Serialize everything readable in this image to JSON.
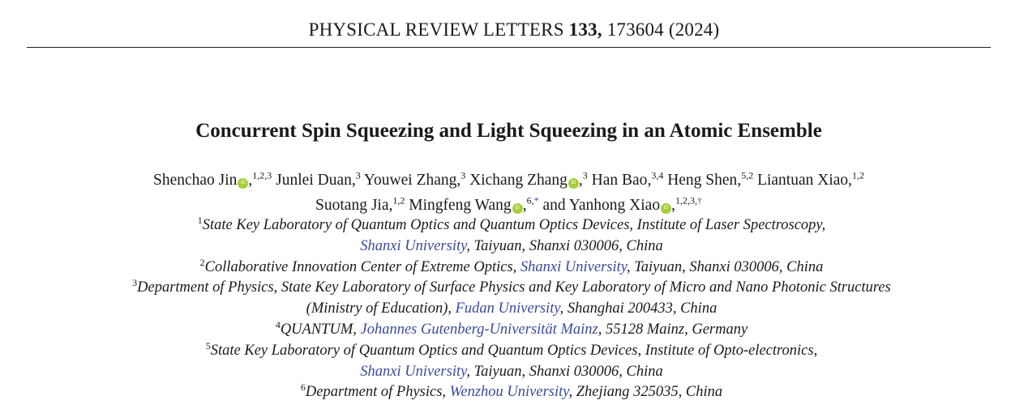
{
  "journal": {
    "name": "PHYSICAL REVIEW LETTERS",
    "volume": "133,",
    "article": "173604 (2024)"
  },
  "title": "Concurrent Spin Squeezing and Light Squeezing in an Atomic Ensemble",
  "author_lines": [
    [
      {
        "name": "Shenchao Jin",
        "orcid": true,
        "sup": "1,2,3"
      },
      {
        "name": "Junlei Duan",
        "orcid": false,
        "sup": "3"
      },
      {
        "name": "Youwei Zhang",
        "orcid": false,
        "sup": "3"
      },
      {
        "name": "Xichang Zhang",
        "orcid": true,
        "sup": "3"
      },
      {
        "name": "Han Bao",
        "orcid": false,
        "sup": "3,4"
      },
      {
        "name": "Heng Shen",
        "orcid": false,
        "sup": "5,2"
      },
      {
        "name": "Liantuan Xiao",
        "orcid": false,
        "sup": "1,2"
      }
    ],
    [
      {
        "name": "Suotang Jia",
        "orcid": false,
        "sup": "1,2"
      },
      {
        "name": "Mingfeng Wang",
        "orcid": true,
        "sup": "6,",
        "mark": "*"
      },
      {
        "prefix": "and ",
        "name": "Yanhong Xiao",
        "orcid": true,
        "sup": "1,2,3,",
        "mark": "†"
      }
    ]
  ],
  "orcid_icon": "orcid-icon",
  "orcid_label": "iD",
  "colors": {
    "link": "#3a4a9c",
    "orcid": "#a6ce39"
  },
  "affiliation_lines": [
    {
      "sup": "1",
      "parts": [
        {
          "text": "State Key Laboratory of Quantum Optics and Quantum Optics Devices, Institute of Laser Spectroscopy,"
        }
      ]
    },
    {
      "parts": [
        {
          "text": "Shanxi University",
          "link": true
        },
        {
          "text": ", Taiyuan, Shanxi 030006, China"
        }
      ]
    },
    {
      "sup": "2",
      "parts": [
        {
          "text": "Collaborative Innovation Center of Extreme Optics, "
        },
        {
          "text": "Shanxi University",
          "link": true
        },
        {
          "text": ", Taiyuan, Shanxi 030006, China"
        }
      ]
    },
    {
      "sup": "3",
      "parts": [
        {
          "text": "Department of Physics, State Key Laboratory of Surface Physics and Key Laboratory of Micro and Nano Photonic Structures"
        }
      ]
    },
    {
      "parts": [
        {
          "text": "(Ministry of Education), "
        },
        {
          "text": "Fudan University",
          "link": true
        },
        {
          "text": ", Shanghai 200433, China"
        }
      ]
    },
    {
      "sup": "4",
      "parts": [
        {
          "text": "QUANTUM, "
        },
        {
          "text": "Johannes Gutenberg-Universität Mainz",
          "link": true
        },
        {
          "text": ", 55128 Mainz, Germany"
        }
      ]
    },
    {
      "sup": "5",
      "parts": [
        {
          "text": "State Key Laboratory of Quantum Optics and Quantum Optics Devices, Institute of Opto-electronics,"
        }
      ]
    },
    {
      "parts": [
        {
          "text": "Shanxi University",
          "link": true
        },
        {
          "text": ", Taiyuan, Shanxi 030006, China"
        }
      ]
    },
    {
      "sup": "6",
      "parts": [
        {
          "text": "Department of Physics, "
        },
        {
          "text": "Wenzhou University",
          "link": true
        },
        {
          "text": ", Zhejiang 325035, China"
        }
      ]
    }
  ]
}
